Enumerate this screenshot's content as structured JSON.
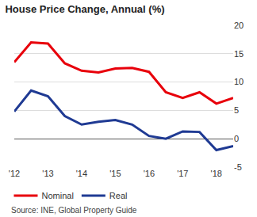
{
  "chart_data": {
    "type": "line",
    "title": "House Price Change, Annual (%)",
    "source": "Source: INE, Global Property Guide",
    "categories": [
      "'12",
      null,
      "'13",
      null,
      "'14",
      null,
      "'15",
      null,
      "'16",
      null,
      "'17",
      null,
      "'18",
      null
    ],
    "series": [
      {
        "name": "Nominal",
        "color": "#e8000b",
        "values": [
          13.5,
          17,
          16.8,
          13.3,
          12,
          11.7,
          12.4,
          12.5,
          11.8,
          8.2,
          7.2,
          8.2,
          6.2,
          7.2
        ]
      },
      {
        "name": "Real",
        "color": "#1f3a93",
        "values": [
          4.8,
          8.5,
          7.5,
          4,
          2.5,
          3,
          3.3,
          2.5,
          0.5,
          0,
          1.3,
          1.2,
          -2,
          -1.3
        ]
      }
    ],
    "ylim": [
      -5,
      20
    ],
    "yticks": [
      -5,
      0,
      5,
      10,
      15,
      20
    ],
    "grid": true,
    "legend": "bottom left"
  }
}
